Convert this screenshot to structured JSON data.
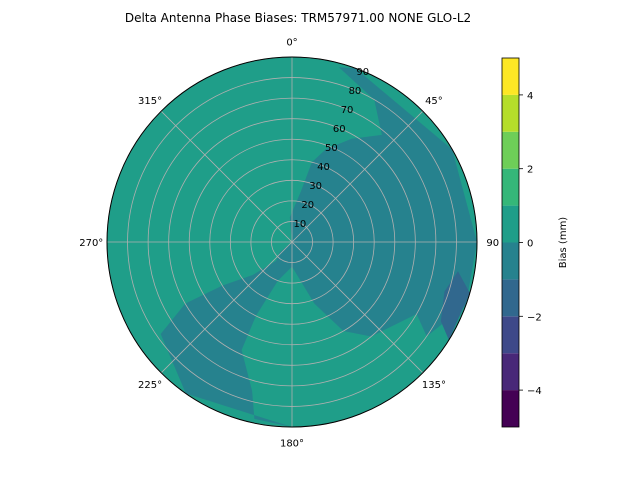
{
  "chart_data": {
    "type": "polar-contour",
    "title": "Delta Antenna Phase Biases: TRM57971.00     NONE GLO-L2",
    "theta_ticks": [
      {
        "deg": 0,
        "label": "0°"
      },
      {
        "deg": 45,
        "label": "45°"
      },
      {
        "deg": 90,
        "label": "90"
      },
      {
        "deg": 135,
        "label": "135°"
      },
      {
        "deg": 180,
        "label": "180°"
      },
      {
        "deg": 225,
        "label": "225°"
      },
      {
        "deg": 270,
        "label": "270°"
      },
      {
        "deg": 315,
        "label": "315°"
      }
    ],
    "r_ticks": [
      10,
      20,
      30,
      40,
      50,
      60,
      70,
      80,
      90
    ],
    "r_tick_labels": [
      "10",
      "20",
      "30",
      "40",
      "50",
      "60",
      "70",
      "80",
      "90"
    ],
    "rlim": [
      0,
      90
    ],
    "theta_direction": "clockwise",
    "theta_zero": "top",
    "grid": true,
    "colorbar": {
      "label": "Bias (mm)",
      "range": [
        -5,
        5
      ],
      "levels": [
        -5,
        -4,
        -3,
        -2,
        -1,
        0,
        1,
        2,
        3,
        4,
        5
      ],
      "tick_values": [
        -4,
        -2,
        0,
        2,
        4
      ],
      "tick_labels": [
        "−4",
        "−2",
        "0",
        "2",
        "4"
      ],
      "colormap": "viridis",
      "band_colors": [
        "#440154",
        "#482878",
        "#3e4989",
        "#31688e",
        "#26828e",
        "#1f9e89",
        "#35b779",
        "#6ece58",
        "#b5de2b",
        "#fde725"
      ]
    },
    "background_level_color": "#1f9e89",
    "regions": [
      {
        "level": "-1 to 0",
        "color": "#26828e",
        "boundary": [
          [
            0,
            0
          ],
          [
            -5,
            12
          ],
          [
            10,
            25
          ],
          [
            14,
            40
          ],
          [
            20,
            48
          ],
          [
            30,
            58
          ],
          [
            40,
            68
          ],
          [
            30,
            80
          ],
          [
            15,
            88
          ],
          [
            20,
            90
          ],
          [
            60,
            90
          ],
          [
            90,
            90
          ],
          [
            110,
            90
          ],
          [
            125,
            80
          ],
          [
            120,
            70
          ],
          [
            140,
            60
          ],
          [
            150,
            50
          ],
          [
            160,
            32
          ],
          [
            180,
            12
          ],
          [
            200,
            20
          ],
          [
            206,
            40
          ],
          [
            205,
            58
          ],
          [
            195,
            75
          ],
          [
            192,
            88
          ],
          [
            180,
            90
          ],
          [
            215,
            90
          ],
          [
            235,
            78
          ],
          [
            240,
            60
          ],
          [
            238,
            40
          ],
          [
            230,
            25
          ],
          [
            220,
            12
          ],
          [
            230,
            8
          ]
        ]
      },
      {
        "level": "-2 to -1",
        "color": "#31688e",
        "boundary": [
          [
            106,
            90
          ],
          [
            100,
            82
          ],
          [
            108,
            78
          ],
          [
            118,
            82
          ],
          [
            122,
            90
          ]
        ]
      }
    ]
  }
}
